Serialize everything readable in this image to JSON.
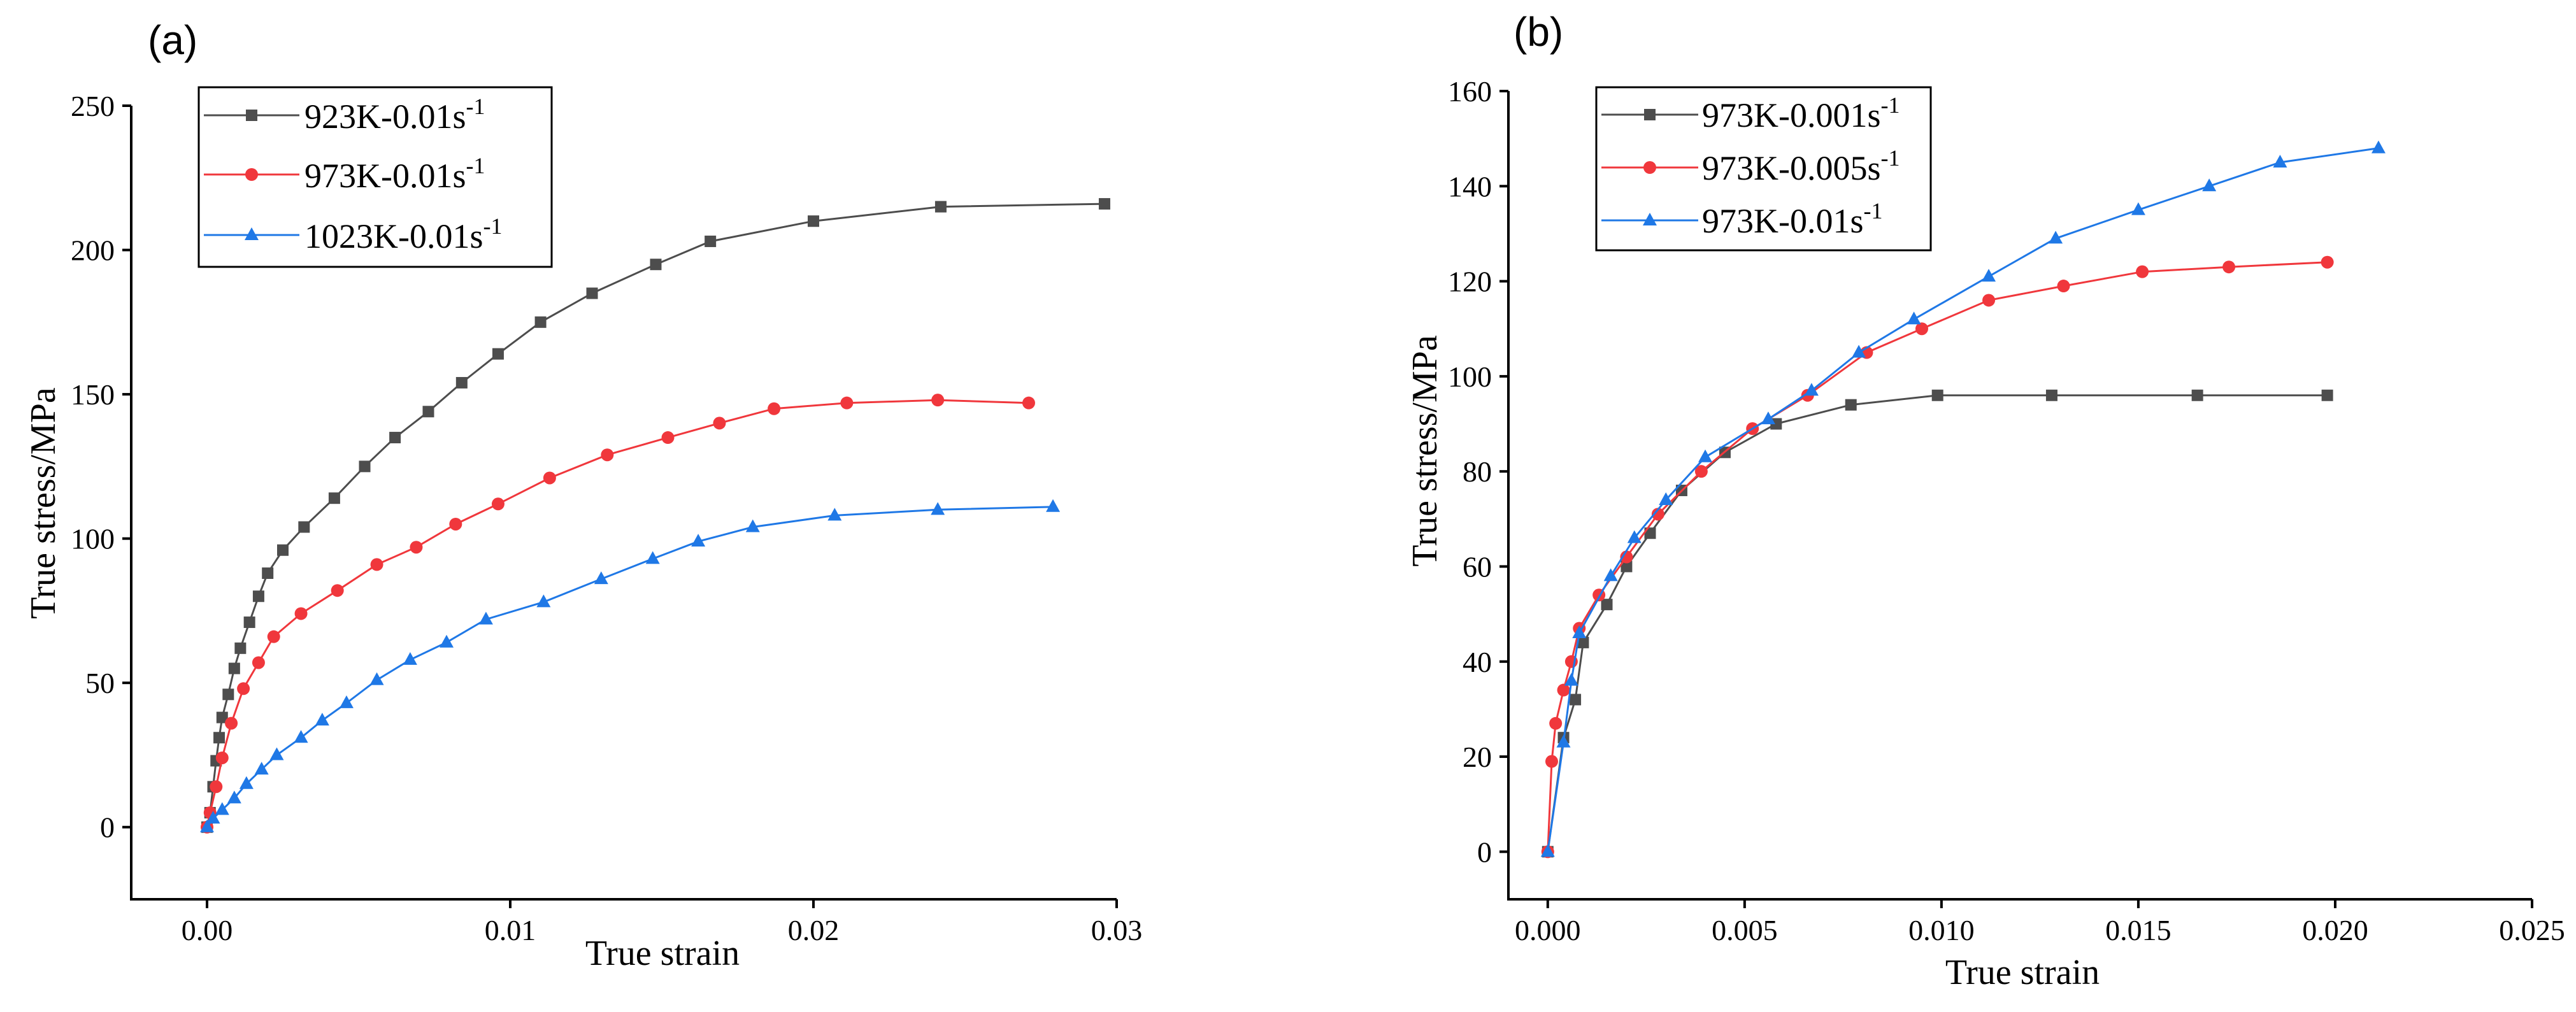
{
  "colors": {
    "black_series": "#4d4d4d",
    "red_series": "#f0373c",
    "blue_series": "#1f78e6"
  },
  "chart_data": [
    {
      "panel_label": "(a)",
      "type": "line",
      "xlabel": "True strain",
      "ylabel": "True stress/MPa",
      "xlim": [
        -0.0025,
        0.03
      ],
      "ylim": [
        -25,
        250
      ],
      "xticks": [
        0.0,
        0.01,
        0.02,
        0.03
      ],
      "xtick_labels": [
        "0.00",
        "0.01",
        "0.02",
        "0.03"
      ],
      "yticks": [
        0,
        50,
        100,
        150,
        200,
        250
      ],
      "ytick_labels": [
        "0",
        "50",
        "100",
        "150",
        "200",
        "250"
      ],
      "grid": false,
      "legend_position": "top-left",
      "series": [
        {
          "label_main": "923K-0.01s",
          "label_sup": "-1",
          "color": "#4d4d4d",
          "marker": "square",
          "x": [
            0,
            0.0001,
            0.0002,
            0.0003,
            0.0004,
            0.0005,
            0.0007,
            0.0009,
            0.0011,
            0.0014,
            0.0017,
            0.002,
            0.0025,
            0.0032,
            0.0042,
            0.0052,
            0.0062,
            0.0073,
            0.0084,
            0.0096,
            0.011,
            0.0127,
            0.0148,
            0.0166,
            0.02,
            0.0242,
            0.0296
          ],
          "y": [
            0,
            5,
            14,
            23,
            31,
            38,
            46,
            55,
            62,
            71,
            80,
            88,
            96,
            104,
            114,
            125,
            135,
            144,
            154,
            164,
            175,
            185,
            195,
            203,
            210,
            215,
            216
          ]
        },
        {
          "label_main": "973K-0.01s",
          "label_sup": "-1",
          "color": "#f0373c",
          "marker": "circle",
          "x": [
            0,
            0.0001,
            0.0003,
            0.0005,
            0.0008,
            0.0012,
            0.0017,
            0.0022,
            0.0031,
            0.0043,
            0.0056,
            0.0069,
            0.0082,
            0.0096,
            0.0113,
            0.0132,
            0.0152,
            0.0169,
            0.0187,
            0.0211,
            0.0241,
            0.0271
          ],
          "y": [
            0,
            5,
            14,
            24,
            36,
            48,
            57,
            66,
            74,
            82,
            91,
            97,
            105,
            112,
            121,
            129,
            135,
            140,
            145,
            147,
            148,
            147
          ]
        },
        {
          "label_main": "1023K-0.01s",
          "label_sup": "-1",
          "color": "#1f78e6",
          "marker": "triangle",
          "x": [
            0,
            0.0002,
            0.0005,
            0.0009,
            0.0013,
            0.0018,
            0.0023,
            0.0031,
            0.0038,
            0.0046,
            0.0056,
            0.0067,
            0.0079,
            0.0092,
            0.0111,
            0.013,
            0.0147,
            0.0162,
            0.018,
            0.0207,
            0.0241,
            0.0279
          ],
          "y": [
            0,
            3,
            6,
            10,
            15,
            20,
            25,
            31,
            37,
            43,
            51,
            58,
            64,
            72,
            78,
            86,
            93,
            99,
            104,
            108,
            110,
            111
          ]
        }
      ]
    },
    {
      "panel_label": "(b)",
      "type": "line",
      "xlabel": "True strain",
      "ylabel": "True stress/MPa",
      "xlim": [
        -0.001,
        0.025
      ],
      "ylim": [
        -10,
        160
      ],
      "xticks": [
        0.0,
        0.005,
        0.01,
        0.015,
        0.02,
        0.025
      ],
      "xtick_labels": [
        "0.000",
        "0.005",
        "0.010",
        "0.015",
        "0.020",
        "0.025"
      ],
      "yticks": [
        0,
        20,
        40,
        60,
        80,
        100,
        120,
        140,
        160
      ],
      "ytick_labels": [
        "0",
        "20",
        "40",
        "60",
        "80",
        "100",
        "120",
        "140",
        "160"
      ],
      "grid": false,
      "legend_position": "top-left",
      "series": [
        {
          "label_main": "973K-0.001s",
          "label_sup": "-1",
          "color": "#4d4d4d",
          "marker": "square",
          "x": [
            0,
            0.0004,
            0.0007,
            0.0009,
            0.0015,
            0.002,
            0.0026,
            0.0034,
            0.0045,
            0.0058,
            0.0077,
            0.0099,
            0.0128,
            0.0165,
            0.0198
          ],
          "y": [
            0,
            24,
            32,
            44,
            52,
            60,
            67,
            76,
            84,
            90,
            94,
            96,
            96,
            96,
            96
          ]
        },
        {
          "label_main": "973K-0.005s",
          "label_sup": "-1",
          "color": "#f0373c",
          "marker": "circle",
          "x": [
            0,
            0.0001,
            0.0002,
            0.0004,
            0.0006,
            0.0008,
            0.0013,
            0.002,
            0.0028,
            0.0039,
            0.0052,
            0.0066,
            0.0081,
            0.0095,
            0.0112,
            0.0131,
            0.0151,
            0.0173,
            0.0198
          ],
          "y": [
            0,
            19,
            27,
            34,
            40,
            47,
            54,
            62,
            71,
            80,
            89,
            96,
            105,
            110,
            116,
            119,
            122,
            123,
            124
          ]
        },
        {
          "label_main": "973K-0.01s",
          "label_sup": "-1",
          "color": "#1f78e6",
          "marker": "triangle",
          "x": [
            0,
            0.0004,
            0.0006,
            0.0008,
            0.0016,
            0.0022,
            0.003,
            0.004,
            0.0056,
            0.0067,
            0.0079,
            0.0093,
            0.0112,
            0.0129,
            0.015,
            0.0168,
            0.0186,
            0.0211
          ],
          "y": [
            0,
            23,
            36,
            46,
            58,
            66,
            74,
            83,
            91,
            97,
            105,
            112,
            121,
            129,
            135,
            140,
            145,
            148
          ]
        }
      ]
    }
  ]
}
